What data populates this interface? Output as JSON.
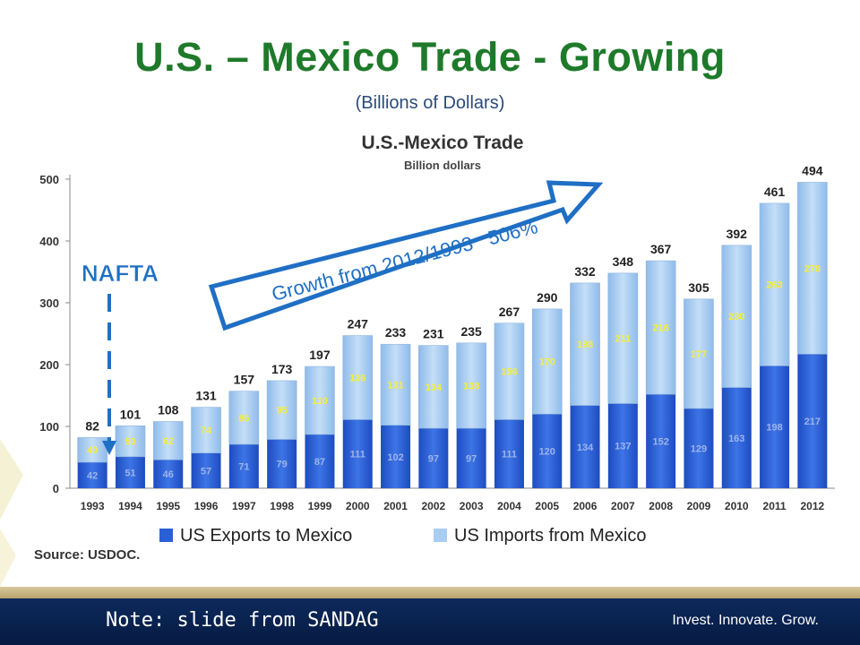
{
  "slide": {
    "title": "U.S. – Mexico Trade - Growing",
    "subtitle": "(Billions of Dollars)"
  },
  "chart_data": {
    "type": "bar",
    "stacked": true,
    "title": "U.S.-Mexico Trade",
    "subtitle": "Billion dollars",
    "categories": [
      "1993",
      "1994",
      "1995",
      "1996",
      "1997",
      "1998",
      "1999",
      "2000",
      "2001",
      "2002",
      "2003",
      "2004",
      "2005",
      "2006",
      "2007",
      "2008",
      "2009",
      "2010",
      "2011",
      "2012"
    ],
    "series": [
      {
        "name": "US Exports to Mexico",
        "color": "#2a5fd6",
        "values": [
          42,
          51,
          46,
          57,
          71,
          79,
          87,
          111,
          102,
          97,
          97,
          111,
          120,
          134,
          137,
          152,
          129,
          163,
          198,
          217
        ]
      },
      {
        "name": "US Imports from Mexico",
        "color": "#a9cdf1",
        "values": [
          40,
          50,
          62,
          74,
          86,
          95,
          110,
          136,
          131,
          134,
          138,
          156,
          170,
          198,
          211,
          216,
          177,
          230,
          263,
          278
        ]
      }
    ],
    "totals": [
      82,
      101,
      108,
      131,
      157,
      173,
      197,
      247,
      233,
      231,
      235,
      267,
      290,
      332,
      348,
      367,
      305,
      392,
      461,
      494
    ],
    "ylim": [
      0,
      500
    ],
    "yticks": [
      0,
      100,
      200,
      300,
      400,
      500
    ],
    "legend_position": "bottom",
    "annotations": {
      "nafta": "NAFTA",
      "growth_text": "Growth from 2012/1993",
      "growth_pct": "506%"
    }
  },
  "source": "Source: USDOC.",
  "footer": {
    "note": "Note: slide from SANDAG",
    "tagline": "Invest. Innovate. Grow."
  },
  "colors": {
    "title": "#1e7a2a",
    "exports": "#2a5fd6",
    "imports": "#a9cdf1",
    "arrow": "#1f6fc4",
    "footer_bg": "#0d2a5c",
    "import_label": "#f5ee3a"
  }
}
